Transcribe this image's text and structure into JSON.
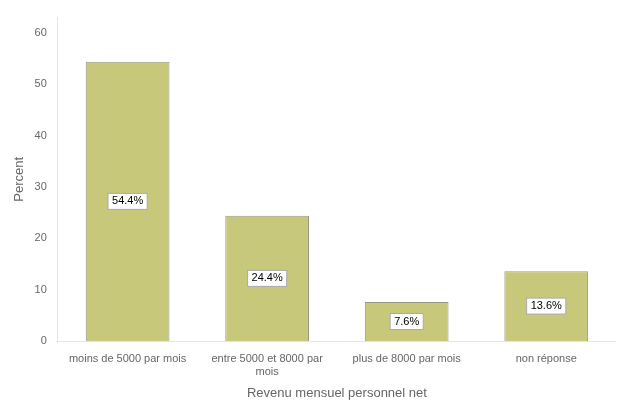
{
  "chart_data": {
    "type": "bar",
    "categories": [
      "moins de 5000 par mois",
      "entre 5000 et 8000 par\nmois",
      "plus de 8000 par mois",
      "non réponse"
    ],
    "values": [
      54.4,
      24.4,
      7.6,
      13.6
    ],
    "value_labels": [
      "54.4%",
      "24.4%",
      "7.6%",
      "13.6%"
    ],
    "data_labels": true,
    "color": "#c8c87a",
    "xlabel": "Revenu mensuel personnel net",
    "ylabel": "Percent",
    "ylim": [
      0,
      63
    ],
    "yticks": [
      0,
      10,
      20,
      30,
      40,
      50,
      60
    ],
    "grid": false
  }
}
